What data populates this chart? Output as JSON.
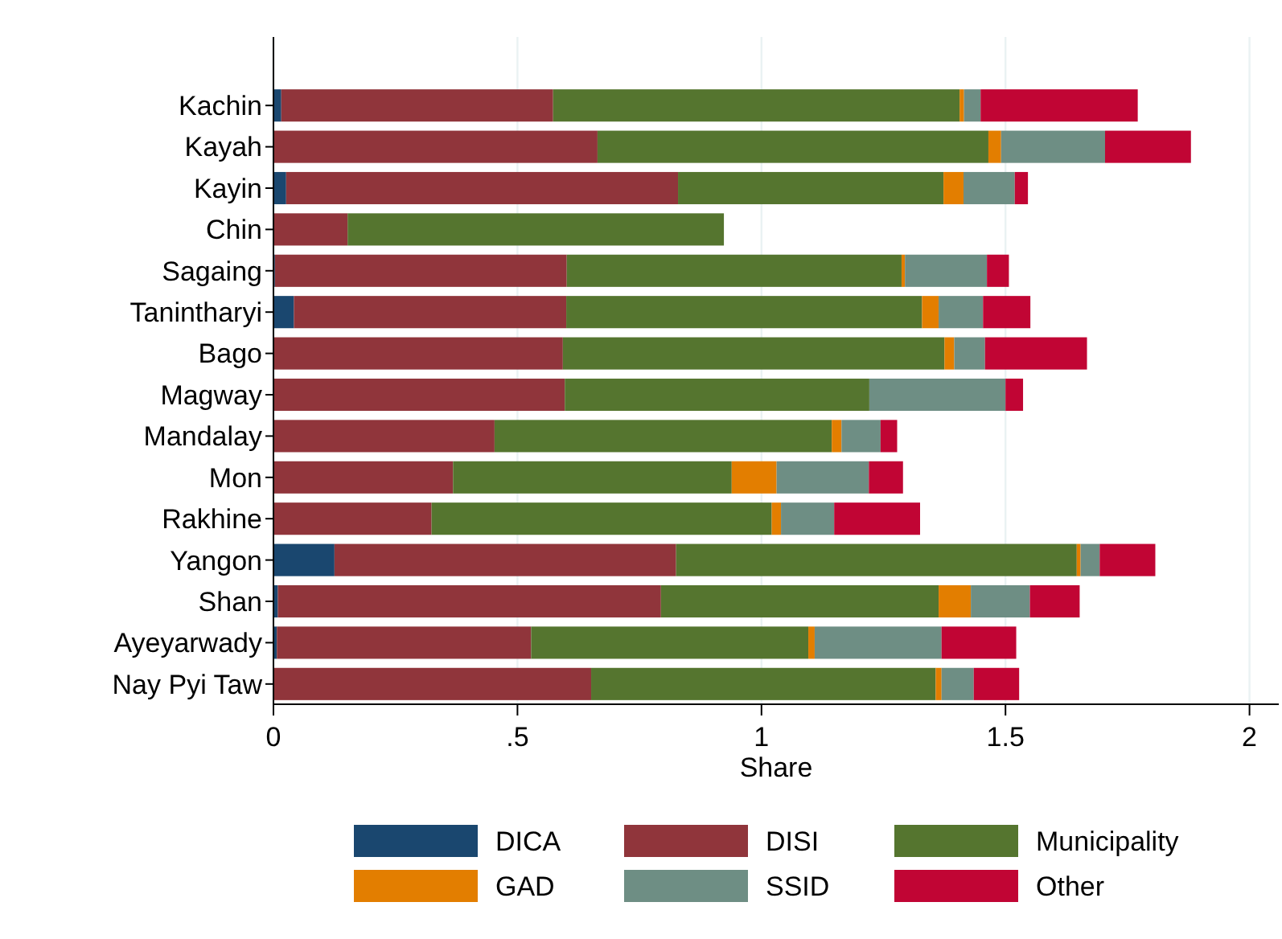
{
  "chart_data": {
    "type": "bar",
    "orientation": "horizontal",
    "stacked": true,
    "xlabel": "Share",
    "categories": [
      "Kachin",
      "Kayah",
      "Kayin",
      "Chin",
      "Sagaing",
      "Tanintharyi",
      "Bago",
      "Magway",
      "Mandalay",
      "Mon",
      "Rakhine",
      "Yangon",
      "Shan",
      "Ayeyarwady",
      "Nay Pyi Taw"
    ],
    "series": [
      {
        "name": "DICA",
        "color": "#1a476f",
        "values": [
          0.016,
          0,
          0.026,
          0,
          0.003,
          0.042,
          null,
          0,
          0,
          null,
          null,
          0.125,
          0.009,
          0.007,
          0
        ]
      },
      {
        "name": "DISI",
        "color": "#90353b",
        "values": [
          0.557,
          0.664,
          0.803,
          0.152,
          0.598,
          0.558,
          0.593,
          0.597,
          0.453,
          0.368,
          0.324,
          0.7,
          0.785,
          0.521,
          0.651
        ]
      },
      {
        "name": "Municipality",
        "color": "#55752f",
        "values": [
          0.833,
          0.801,
          0.544,
          0.771,
          0.686,
          0.729,
          0.782,
          0.624,
          0.691,
          0.571,
          0.697,
          0.821,
          0.569,
          0.568,
          0.706
        ]
      },
      {
        "name": "GAD",
        "color": "#e37e00",
        "values": [
          0.009,
          0.026,
          0.041,
          0,
          0.007,
          0.034,
          0.02,
          0,
          0.02,
          0.092,
          0.019,
          0.008,
          0.066,
          0.013,
          0.012
        ]
      },
      {
        "name": "SSID",
        "color": "#6e8e84",
        "values": [
          0.034,
          0.213,
          0.105,
          0,
          0.168,
          0.091,
          0.063,
          0.279,
          0.08,
          0.189,
          0.109,
          0.039,
          0.121,
          0.26,
          0.066
        ]
      },
      {
        "name": "Other",
        "color": "#c10534",
        "values": [
          0.322,
          0.176,
          0.027,
          0,
          0.045,
          0.097,
          0.209,
          0.036,
          0.034,
          0.07,
          0.176,
          0.114,
          0.102,
          0.153,
          0.093
        ]
      }
    ],
    "xlim": [
      0,
      2.06
    ],
    "xticks": [
      0,
      {
        "value": 0.5,
        "label": ".5"
      },
      1,
      {
        "value": 1.5,
        "label": "1.5"
      },
      2
    ],
    "grid": "x",
    "legend": "bottom"
  }
}
